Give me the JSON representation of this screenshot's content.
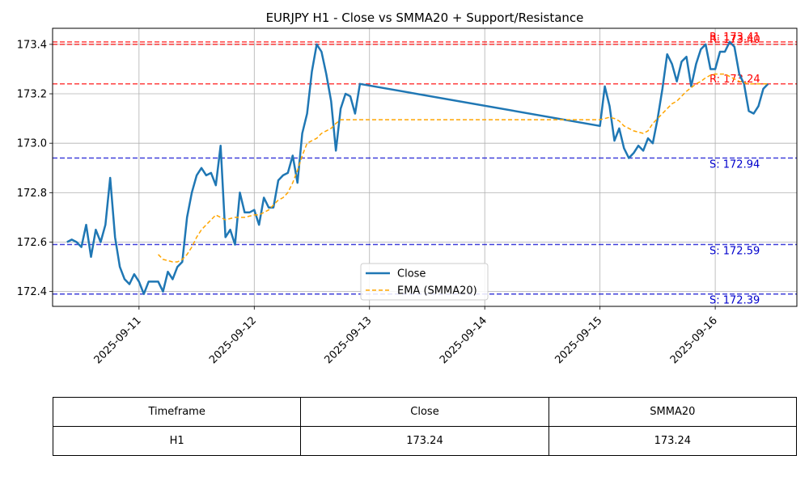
{
  "chart_data": {
    "type": "line",
    "title": "EURJPY H1 - Close vs SMMA20 + Support/Resistance",
    "xlabel": "",
    "ylabel": "",
    "x_ticks": [
      "2025-09-11",
      "2025-09-12",
      "2025-09-13",
      "2025-09-14",
      "2025-09-15",
      "2025-09-16"
    ],
    "y_ticks": [
      "172.4",
      "172.6",
      "172.8",
      "173.0",
      "173.2",
      "173.4"
    ],
    "xlim": [
      "2025-09-10T06:00",
      "2025-09-16T17:00"
    ],
    "ylim": [
      172.34,
      173.465
    ],
    "grid": true,
    "legend_position": "lower-center",
    "series": [
      {
        "name": "Close",
        "color": "#1f77b4",
        "style": "solid",
        "x": [
          "2025-09-10T09:00",
          "2025-09-10T10:00",
          "2025-09-10T11:00",
          "2025-09-10T12:00",
          "2025-09-10T13:00",
          "2025-09-10T14:00",
          "2025-09-10T15:00",
          "2025-09-10T16:00",
          "2025-09-10T17:00",
          "2025-09-10T18:00",
          "2025-09-10T19:00",
          "2025-09-10T20:00",
          "2025-09-10T21:00",
          "2025-09-10T22:00",
          "2025-09-10T23:00",
          "2025-09-11T00:00",
          "2025-09-11T01:00",
          "2025-09-11T02:00",
          "2025-09-11T03:00",
          "2025-09-11T04:00",
          "2025-09-11T05:00",
          "2025-09-11T06:00",
          "2025-09-11T07:00",
          "2025-09-11T08:00",
          "2025-09-11T09:00",
          "2025-09-11T10:00",
          "2025-09-11T11:00",
          "2025-09-11T12:00",
          "2025-09-11T13:00",
          "2025-09-11T14:00",
          "2025-09-11T15:00",
          "2025-09-11T16:00",
          "2025-09-11T17:00",
          "2025-09-11T18:00",
          "2025-09-11T19:00",
          "2025-09-11T20:00",
          "2025-09-11T21:00",
          "2025-09-11T22:00",
          "2025-09-11T23:00",
          "2025-09-12T00:00",
          "2025-09-12T01:00",
          "2025-09-12T02:00",
          "2025-09-12T03:00",
          "2025-09-12T04:00",
          "2025-09-12T05:00",
          "2025-09-12T06:00",
          "2025-09-12T07:00",
          "2025-09-12T08:00",
          "2025-09-12T09:00",
          "2025-09-12T10:00",
          "2025-09-12T11:00",
          "2025-09-12T12:00",
          "2025-09-12T13:00",
          "2025-09-12T14:00",
          "2025-09-12T15:00",
          "2025-09-12T16:00",
          "2025-09-12T17:00",
          "2025-09-12T18:00",
          "2025-09-12T19:00",
          "2025-09-12T20:00",
          "2025-09-12T21:00",
          "2025-09-12T22:00",
          "2025-09-15T00:00",
          "2025-09-15T01:00",
          "2025-09-15T02:00",
          "2025-09-15T03:00",
          "2025-09-15T04:00",
          "2025-09-15T05:00",
          "2025-09-15T06:00",
          "2025-09-15T07:00",
          "2025-09-15T08:00",
          "2025-09-15T09:00",
          "2025-09-15T10:00",
          "2025-09-15T11:00",
          "2025-09-15T12:00",
          "2025-09-15T13:00",
          "2025-09-15T14:00",
          "2025-09-15T15:00",
          "2025-09-15T16:00",
          "2025-09-15T17:00",
          "2025-09-15T18:00",
          "2025-09-15T19:00",
          "2025-09-15T20:00",
          "2025-09-15T21:00",
          "2025-09-15T22:00",
          "2025-09-15T23:00",
          "2025-09-16T00:00",
          "2025-09-16T01:00",
          "2025-09-16T02:00",
          "2025-09-16T03:00",
          "2025-09-16T04:00",
          "2025-09-16T05:00",
          "2025-09-16T06:00",
          "2025-09-16T07:00",
          "2025-09-16T08:00",
          "2025-09-16T09:00",
          "2025-09-16T10:00",
          "2025-09-16T11:00"
        ],
        "y": [
          172.6,
          172.61,
          172.6,
          172.58,
          172.67,
          172.54,
          172.65,
          172.6,
          172.67,
          172.86,
          172.62,
          172.5,
          172.45,
          172.43,
          172.47,
          172.44,
          172.39,
          172.44,
          172.44,
          172.44,
          172.4,
          172.48,
          172.45,
          172.5,
          172.52,
          172.7,
          172.8,
          172.87,
          172.9,
          172.87,
          172.88,
          172.83,
          172.99,
          172.62,
          172.65,
          172.59,
          172.8,
          172.72,
          172.72,
          172.73,
          172.67,
          172.78,
          172.74,
          172.74,
          172.85,
          172.87,
          172.88,
          172.95,
          172.84,
          173.04,
          173.12,
          173.29,
          173.4,
          173.37,
          173.28,
          173.17,
          172.97,
          173.14,
          173.2,
          173.19,
          173.12,
          173.24,
          173.07,
          173.23,
          173.15,
          173.01,
          173.06,
          172.98,
          172.94,
          172.96,
          172.99,
          172.97,
          173.02,
          173.0,
          173.1,
          173.22,
          173.36,
          173.32,
          173.25,
          173.33,
          173.35,
          173.23,
          173.32,
          173.38,
          173.4,
          173.3,
          173.3,
          173.37,
          173.37,
          173.41,
          173.39,
          173.28,
          173.24,
          173.13,
          173.12,
          173.15,
          173.22,
          173.24
        ]
      },
      {
        "name": "EMA (SMMA20)",
        "color": "#ffa500",
        "style": "dashed",
        "x": [
          "2025-09-11T04:00",
          "2025-09-11T05:00",
          "2025-09-11T06:00",
          "2025-09-11T07:00",
          "2025-09-11T08:00",
          "2025-09-11T09:00",
          "2025-09-11T10:00",
          "2025-09-11T11:00",
          "2025-09-11T12:00",
          "2025-09-11T13:00",
          "2025-09-11T14:00",
          "2025-09-11T15:00",
          "2025-09-11T16:00",
          "2025-09-11T17:00",
          "2025-09-11T18:00",
          "2025-09-11T19:00",
          "2025-09-11T20:00",
          "2025-09-11T21:00",
          "2025-09-11T22:00",
          "2025-09-11T23:00",
          "2025-09-12T00:00",
          "2025-09-12T01:00",
          "2025-09-12T02:00",
          "2025-09-12T03:00",
          "2025-09-12T04:00",
          "2025-09-12T05:00",
          "2025-09-12T06:00",
          "2025-09-12T07:00",
          "2025-09-12T08:00",
          "2025-09-12T09:00",
          "2025-09-12T10:00",
          "2025-09-12T11:00",
          "2025-09-12T12:00",
          "2025-09-12T13:00",
          "2025-09-12T14:00",
          "2025-09-12T15:00",
          "2025-09-12T16:00",
          "2025-09-12T17:00",
          "2025-09-12T18:00",
          "2025-09-12T19:00",
          "2025-09-12T20:00",
          "2025-09-12T21:00",
          "2025-09-12T22:00",
          "2025-09-15T00:00",
          "2025-09-15T01:00",
          "2025-09-15T02:00",
          "2025-09-15T03:00",
          "2025-09-15T04:00",
          "2025-09-15T05:00",
          "2025-09-15T06:00",
          "2025-09-15T07:00",
          "2025-09-15T08:00",
          "2025-09-15T09:00",
          "2025-09-15T10:00",
          "2025-09-15T11:00",
          "2025-09-15T12:00",
          "2025-09-15T13:00",
          "2025-09-15T14:00",
          "2025-09-15T15:00",
          "2025-09-15T16:00",
          "2025-09-15T17:00",
          "2025-09-15T18:00",
          "2025-09-15T19:00",
          "2025-09-15T20:00",
          "2025-09-15T21:00",
          "2025-09-15T22:00",
          "2025-09-15T23:00",
          "2025-09-16T00:00",
          "2025-09-16T01:00",
          "2025-09-16T02:00",
          "2025-09-16T03:00",
          "2025-09-16T04:00",
          "2025-09-16T05:00",
          "2025-09-16T06:00",
          "2025-09-16T07:00",
          "2025-09-16T08:00",
          "2025-09-16T09:00",
          "2025-09-16T10:00",
          "2025-09-16T11:00"
        ],
        "y": [
          172.55,
          172.53,
          172.525,
          172.52,
          172.52,
          172.53,
          172.55,
          172.58,
          172.62,
          172.65,
          172.67,
          172.69,
          172.71,
          172.7,
          172.69,
          172.695,
          172.7,
          172.7,
          172.7,
          172.705,
          172.71,
          172.71,
          172.72,
          172.73,
          172.75,
          172.77,
          172.78,
          172.8,
          172.84,
          172.89,
          172.95,
          173.0,
          173.01,
          173.02,
          173.04,
          173.05,
          173.06,
          173.08,
          173.095,
          173.095,
          173.095,
          173.095,
          173.095,
          173.095,
          173.1,
          173.105,
          173.1,
          173.09,
          173.07,
          173.06,
          173.05,
          173.045,
          173.04,
          173.05,
          173.08,
          173.1,
          173.12,
          173.14,
          173.16,
          173.17,
          173.19,
          173.21,
          173.225,
          173.24,
          173.25,
          173.265,
          173.275,
          173.28,
          173.28,
          173.28,
          173.27,
          173.26,
          173.25,
          173.245,
          173.24,
          173.24,
          173.24,
          173.24,
          173.24
        ]
      }
    ],
    "levels": [
      {
        "kind": "resistance",
        "value": 173.41,
        "label": "R: 173.41",
        "color": "#ff0000"
      },
      {
        "kind": "resistance",
        "value": 173.4,
        "label": "R: 173.40",
        "color": "#ff0000"
      },
      {
        "kind": "resistance",
        "value": 173.24,
        "label": "R: 173.24",
        "color": "#ff0000"
      },
      {
        "kind": "support",
        "value": 172.94,
        "label": "S: 172.94",
        "color": "#0000cc"
      },
      {
        "kind": "support",
        "value": 172.59,
        "label": "S: 172.59",
        "color": "#0000cc"
      },
      {
        "kind": "support",
        "value": 172.39,
        "label": "S: 172.39",
        "color": "#0000cc"
      }
    ]
  },
  "table": {
    "headers": [
      "Timeframe",
      "Close",
      "SMMA20"
    ],
    "rows": [
      [
        "H1",
        "173.24",
        "173.24"
      ]
    ]
  }
}
